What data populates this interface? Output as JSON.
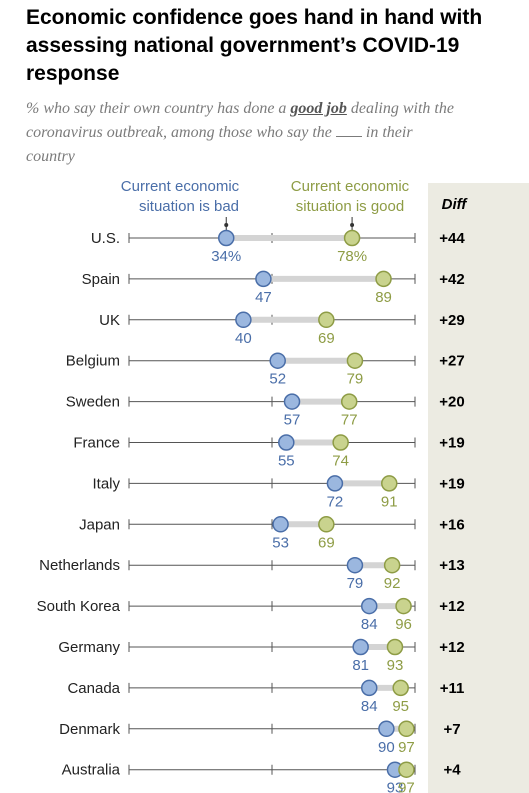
{
  "title": "Economic confidence goes hand in hand with assessing national government’s COVID-19 response",
  "subtitle": {
    "part1": "% who say their own country has done a ",
    "emphasis": "good job",
    "part2": " dealing with the coronavirus outbreak, among those who say the ",
    "part3": " in their country"
  },
  "legend": {
    "bad_line1": "Current economic",
    "bad_line2": "situation is bad",
    "good_line1": "Current economic",
    "good_line2": "situation is good",
    "diff_header": "Diff"
  },
  "colors": {
    "bad": "#9bb7df",
    "bad_stroke": "#4a6ea8",
    "bad_text": "#4a6ea8",
    "good": "#c9d38e",
    "good_stroke": "#8e9c45",
    "good_text": "#8e9c45",
    "connector": "#d4d4d4",
    "diff_bg": "#ecebe2"
  },
  "chart_data": {
    "type": "dot-plot",
    "xlim": [
      0,
      100
    ],
    "series": [
      {
        "name": "Current economic situation is bad",
        "key": "bad"
      },
      {
        "name": "Current economic situation is good",
        "key": "good"
      }
    ],
    "rows": [
      {
        "country": "U.S.",
        "bad": 34,
        "good": 78,
        "bad_label": "34%",
        "good_label": "78%",
        "diff": "+44"
      },
      {
        "country": "Spain",
        "bad": 47,
        "good": 89,
        "bad_label": "47",
        "good_label": "89",
        "diff": "+42"
      },
      {
        "country": "UK",
        "bad": 40,
        "good": 69,
        "bad_label": "40",
        "good_label": "69",
        "diff": "+29"
      },
      {
        "country": "Belgium",
        "bad": 52,
        "good": 79,
        "bad_label": "52",
        "good_label": "79",
        "diff": "+27"
      },
      {
        "country": "Sweden",
        "bad": 57,
        "good": 77,
        "bad_label": "57",
        "good_label": "77",
        "diff": "+20"
      },
      {
        "country": "France",
        "bad": 55,
        "good": 74,
        "bad_label": "55",
        "good_label": "74",
        "diff": "+19"
      },
      {
        "country": "Italy",
        "bad": 72,
        "good": 91,
        "bad_label": "72",
        "good_label": "91",
        "diff": "+19"
      },
      {
        "country": "Japan",
        "bad": 53,
        "good": 69,
        "bad_label": "53",
        "good_label": "69",
        "diff": "+16"
      },
      {
        "country": "Netherlands",
        "bad": 79,
        "good": 92,
        "bad_label": "79",
        "good_label": "92",
        "diff": "+13"
      },
      {
        "country": "South Korea",
        "bad": 84,
        "good": 96,
        "bad_label": "84",
        "good_label": "96",
        "diff": "+12"
      },
      {
        "country": "Germany",
        "bad": 81,
        "good": 93,
        "bad_label": "81",
        "good_label": "93",
        "diff": "+12"
      },
      {
        "country": "Canada",
        "bad": 84,
        "good": 95,
        "bad_label": "84",
        "good_label": "95",
        "diff": "+11"
      },
      {
        "country": "Denmark",
        "bad": 90,
        "good": 97,
        "bad_label": "90",
        "good_label": "97",
        "diff": "+7"
      },
      {
        "country": "Australia",
        "bad": 93,
        "good": 97,
        "bad_label": "93",
        "good_label": "97",
        "diff": "+4"
      }
    ]
  }
}
